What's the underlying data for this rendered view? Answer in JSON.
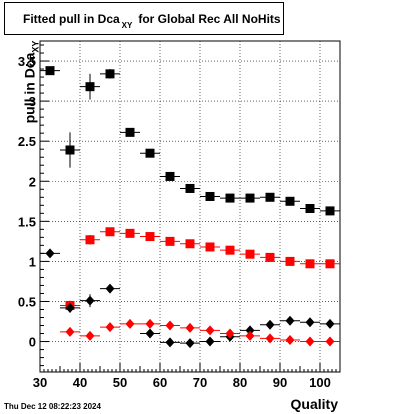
{
  "title": {
    "main": "Fitted pull in Dca",
    "sub": "XY",
    "rest": "for Global Rec All NoHits"
  },
  "ylabel": {
    "main": "pull in Dca",
    "sub": "XY"
  },
  "xlabel": "Quality",
  "footer": "Thu Dec 12 08:22:23 2024",
  "chart_data": {
    "type": "scatter",
    "xlim": [
      30,
      105
    ],
    "ylim": [
      -0.38,
      3.75
    ],
    "xticks": [
      30,
      40,
      50,
      60,
      70,
      80,
      90,
      100
    ],
    "xtick_labels": [
      "30",
      "40",
      "50",
      "60",
      "70",
      "80",
      "90",
      "100"
    ],
    "yticks": [
      0,
      0.5,
      1,
      1.5,
      2,
      2.5,
      3,
      3.5
    ],
    "ytick_labels": [
      "0",
      "0.5",
      "1",
      "1.5",
      "2",
      "2.5",
      "3",
      "3.5"
    ],
    "grid": true,
    "bin_half_width": 2.5,
    "series": [
      {
        "marker": "square",
        "color": "#000000",
        "x": [
          32.5,
          37.5,
          42.5,
          47.5,
          52.5,
          57.5,
          62.5,
          67.5,
          72.5,
          77.5,
          82.5,
          87.5,
          92.5,
          97.5,
          102.5
        ],
        "y": [
          3.38,
          2.39,
          3.18,
          3.34,
          2.61,
          2.35,
          2.06,
          1.91,
          1.81,
          1.79,
          1.79,
          1.8,
          1.75,
          1.66,
          1.63
        ],
        "yerr": [
          0.05,
          0.22,
          0.16,
          0.06,
          0.03,
          0.03,
          0.03,
          0.02,
          0.02,
          0.02,
          0.02,
          0.02,
          0.02,
          0.02,
          0.02
        ]
      },
      {
        "marker": "square",
        "color": "#ff0000",
        "x": [
          37.5,
          42.5,
          47.5,
          52.5,
          57.5,
          62.5,
          67.5,
          72.5,
          77.5,
          82.5,
          87.5,
          92.5,
          97.5,
          102.5
        ],
        "y": [
          0.45,
          1.27,
          1.37,
          1.35,
          1.31,
          1.25,
          1.22,
          1.18,
          1.14,
          1.09,
          1.05,
          1.0,
          0.97,
          0.97
        ],
        "yerr": [
          0.06,
          0.06,
          0.03,
          0.02,
          0.02,
          0.02,
          0.02,
          0.02,
          0.02,
          0.02,
          0.02,
          0.02,
          0.02,
          0.02
        ]
      },
      {
        "marker": "diamond",
        "color": "#000000",
        "x": [
          32.5,
          37.5,
          42.5,
          47.5,
          57.5,
          62.5,
          67.5,
          72.5,
          77.5,
          82.5,
          87.5,
          92.5,
          97.5,
          102.5
        ],
        "y": [
          1.1,
          0.42,
          0.51,
          0.66,
          0.1,
          -0.01,
          -0.02,
          0.0,
          0.06,
          0.14,
          0.21,
          0.26,
          0.24,
          0.22
        ],
        "yerr": [
          0.03,
          0.06,
          0.08,
          0.03,
          0.02,
          0.02,
          0.02,
          0.02,
          0.02,
          0.02,
          0.02,
          0.02,
          0.02,
          0.02
        ]
      },
      {
        "marker": "diamond",
        "color": "#ff0000",
        "x": [
          37.5,
          42.5,
          47.5,
          52.5,
          57.5,
          62.5,
          67.5,
          72.5,
          77.5,
          82.5,
          87.5,
          92.5,
          97.5,
          102.5
        ],
        "y": [
          0.12,
          0.07,
          0.18,
          0.22,
          0.22,
          0.2,
          0.17,
          0.14,
          0.1,
          0.07,
          0.04,
          0.02,
          0.0,
          0.0
        ],
        "yerr": [
          0.03,
          0.03,
          0.02,
          0.02,
          0.02,
          0.02,
          0.02,
          0.02,
          0.02,
          0.02,
          0.02,
          0.02,
          0.02,
          0.02
        ]
      }
    ]
  }
}
